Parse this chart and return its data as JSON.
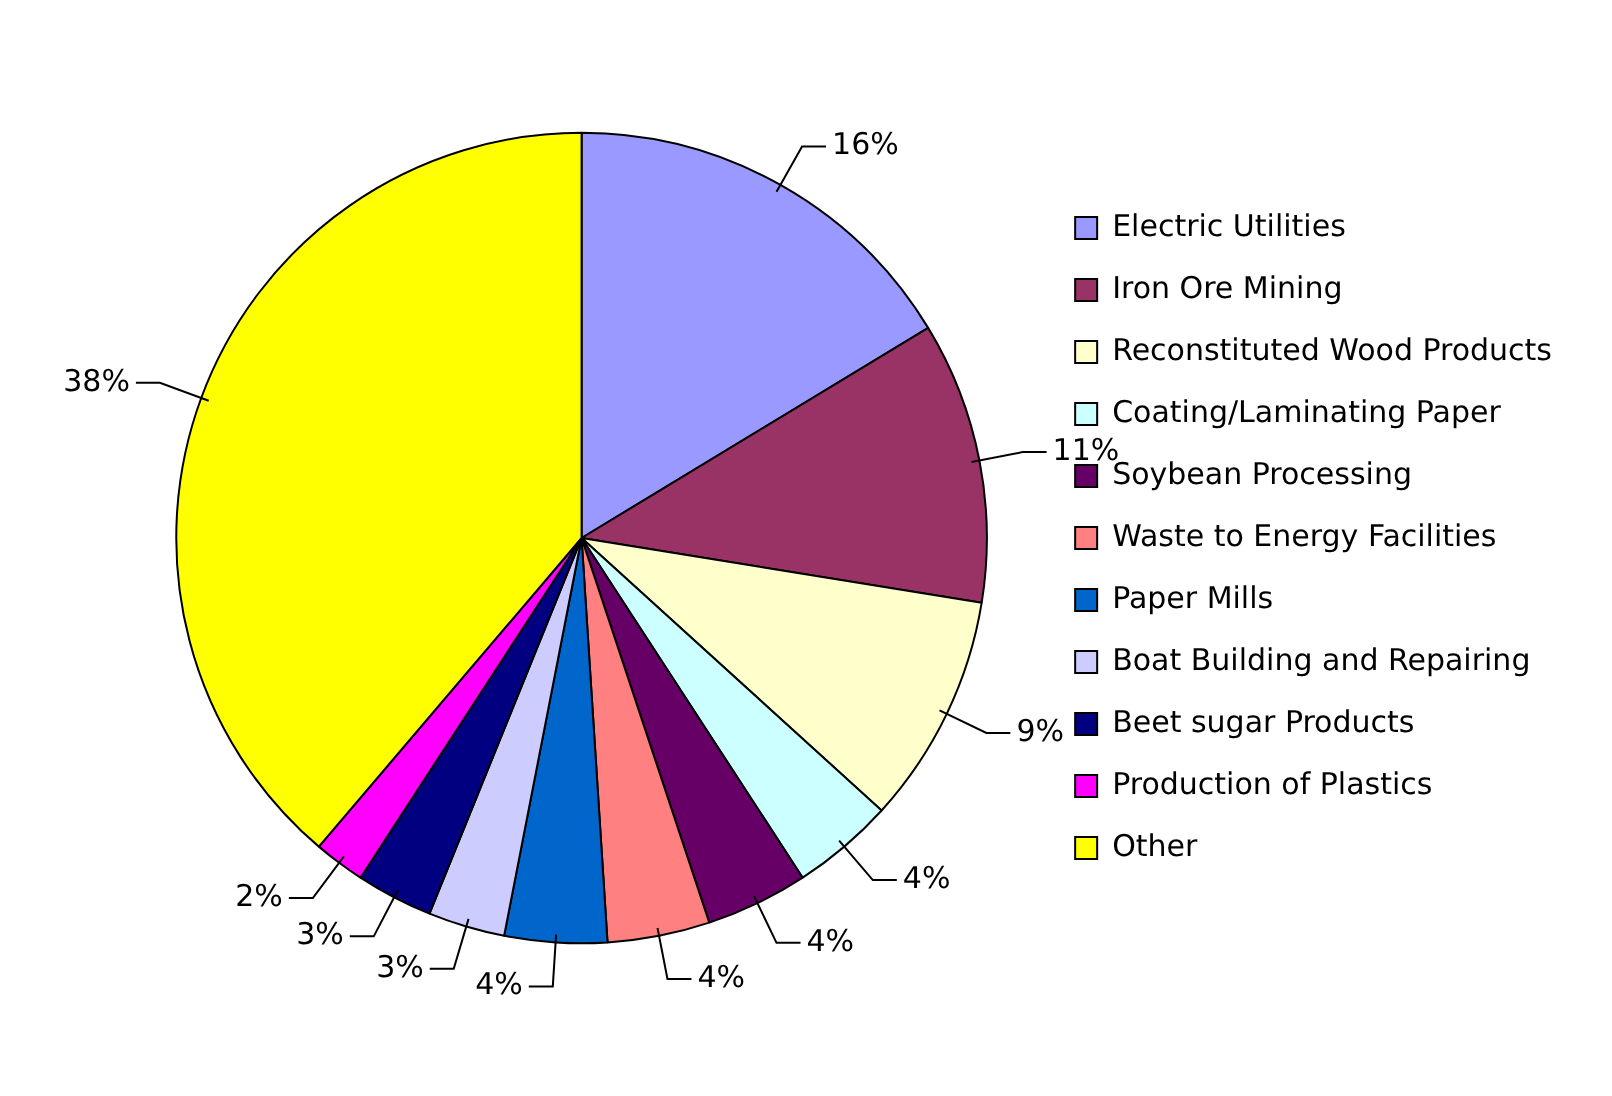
{
  "chart_data": {
    "type": "pie",
    "categories": [
      "Electric Utilities",
      "Iron Ore Mining",
      "Reconstituted Wood Products",
      "Coating/Laminating Paper",
      "Soybean Processing",
      "Waste to Energy Facilities",
      "Paper Mills",
      "Boat Building and Repairing",
      "Beet sugar Products",
      "Production of Plastics",
      "Other"
    ],
    "values": [
      16,
      11,
      9,
      4,
      4,
      4,
      4,
      3,
      3,
      2,
      38
    ],
    "colors": [
      "#9999ff",
      "#993366",
      "#ffffcc",
      "#ccffff",
      "#660066",
      "#ff8080",
      "#0066cc",
      "#ccccff",
      "#000080",
      "#ff00ff",
      "#ffff00"
    ],
    "value_labels": [
      "16%",
      "11%",
      "9%",
      "4%",
      "4%",
      "4%",
      "4%",
      "3%",
      "3%",
      "2%",
      "38%"
    ],
    "legend": "right"
  }
}
